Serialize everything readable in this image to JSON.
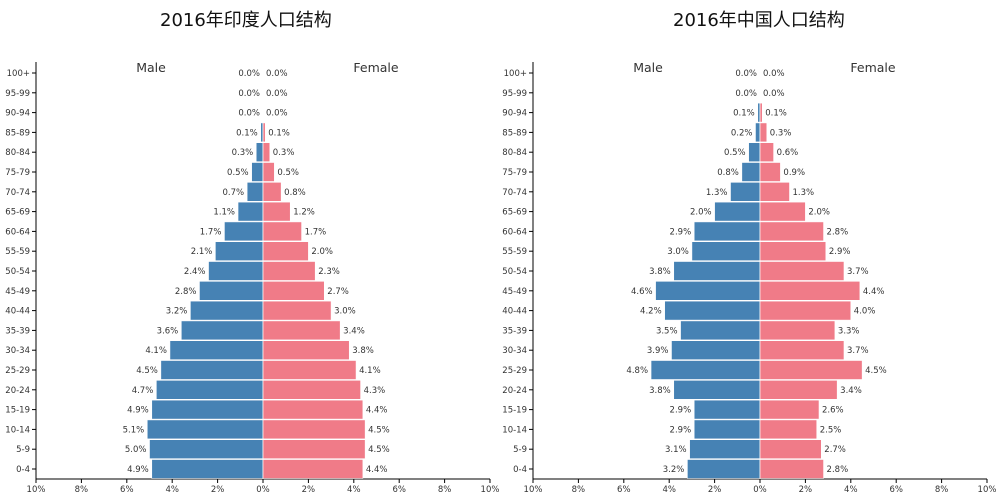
{
  "colors": {
    "male": "#4682b4",
    "female": "#f07b88",
    "axis": "#000000",
    "text": "#333333"
  },
  "chart_data": [
    {
      "type": "population-pyramid",
      "title": "2016年印度人口结构",
      "left_label": "Male",
      "right_label": "Female",
      "age_groups": [
        "0-4",
        "5-9",
        "10-14",
        "15-19",
        "20-24",
        "25-29",
        "30-34",
        "35-39",
        "40-44",
        "45-49",
        "50-54",
        "55-59",
        "60-64",
        "65-69",
        "70-74",
        "75-79",
        "80-84",
        "85-89",
        "90-94",
        "95-99",
        "100+"
      ],
      "series": [
        {
          "name": "Male",
          "values": [
            4.9,
            5.0,
            5.1,
            4.9,
            4.7,
            4.5,
            4.1,
            3.6,
            3.2,
            2.8,
            2.4,
            2.1,
            1.7,
            1.1,
            0.7,
            0.5,
            0.3,
            0.1,
            0.0,
            0.0,
            0.0
          ]
        },
        {
          "name": "Female",
          "values": [
            4.4,
            4.5,
            4.5,
            4.4,
            4.3,
            4.1,
            3.8,
            3.4,
            3.0,
            2.7,
            2.3,
            2.0,
            1.7,
            1.2,
            0.8,
            0.5,
            0.3,
            0.1,
            0.0,
            0.0,
            0.0
          ]
        }
      ],
      "x_ticks": [
        "10%",
        "8%",
        "6%",
        "4%",
        "2%",
        "0%",
        "2%",
        "4%",
        "6%",
        "8%",
        "10%"
      ],
      "xlim": [
        -10,
        10
      ]
    },
    {
      "type": "population-pyramid",
      "title": "2016年中国人口结构",
      "left_label": "Male",
      "right_label": "Female",
      "age_groups": [
        "0-4",
        "5-9",
        "10-14",
        "15-19",
        "20-24",
        "25-29",
        "30-34",
        "35-39",
        "40-44",
        "45-49",
        "50-54",
        "55-59",
        "60-64",
        "65-69",
        "70-74",
        "75-79",
        "80-84",
        "85-89",
        "90-94",
        "95-99",
        "100+"
      ],
      "series": [
        {
          "name": "Male",
          "values": [
            3.2,
            3.1,
            2.9,
            2.9,
            3.8,
            4.8,
            3.9,
            3.5,
            4.2,
            4.6,
            3.8,
            3.0,
            2.9,
            2.0,
            1.3,
            0.8,
            0.5,
            0.2,
            0.1,
            0.0,
            0.0
          ]
        },
        {
          "name": "Female",
          "values": [
            2.8,
            2.7,
            2.5,
            2.6,
            3.4,
            4.5,
            3.7,
            3.3,
            4.0,
            4.4,
            3.7,
            2.9,
            2.8,
            2.0,
            1.3,
            0.9,
            0.6,
            0.3,
            0.1,
            0.0,
            0.0
          ]
        }
      ],
      "x_ticks": [
        "10%",
        "8%",
        "6%",
        "4%",
        "2%",
        "0%",
        "2%",
        "4%",
        "6%",
        "8%",
        "10%"
      ],
      "xlim": [
        -10,
        10
      ]
    }
  ]
}
